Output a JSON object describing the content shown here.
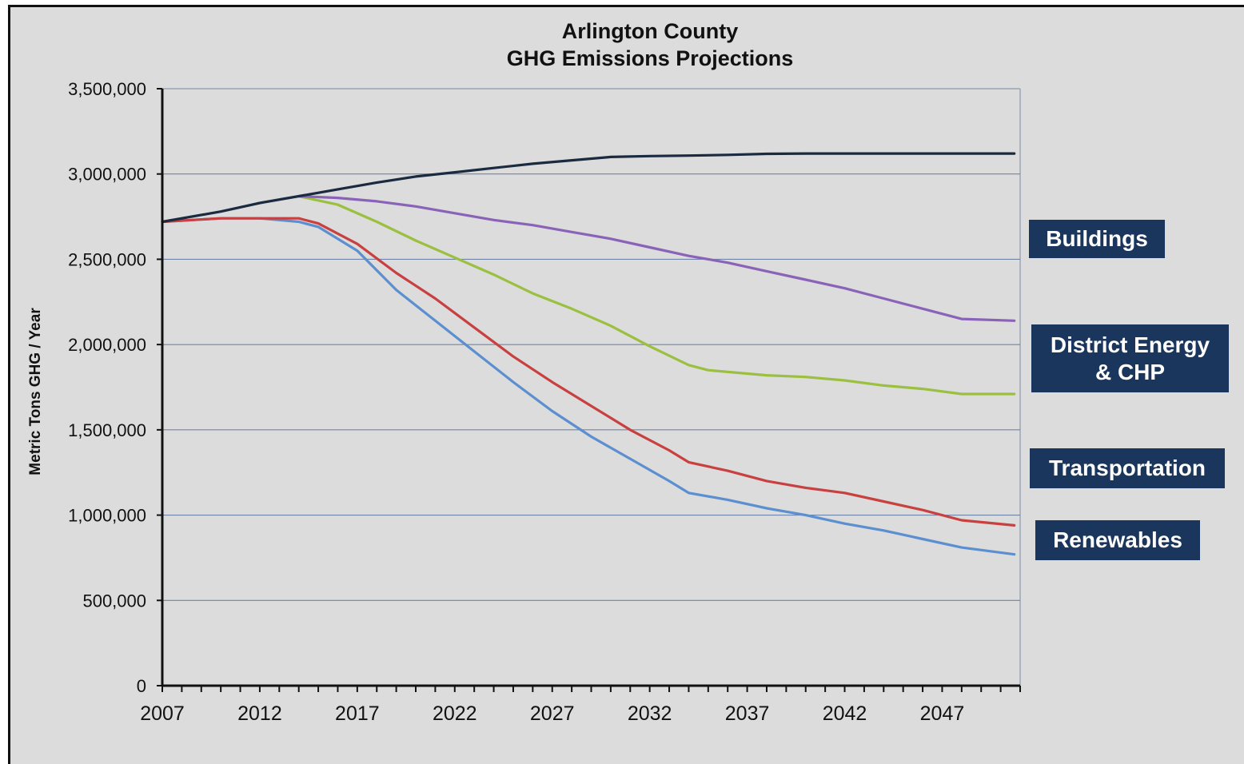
{
  "chart_data": {
    "type": "line",
    "title": [
      "Arlington County",
      "GHG Emissions Projections"
    ],
    "xlabel": "",
    "ylabel": "Metric Tons GHG / Year",
    "xlim": [
      2007,
      2051
    ],
    "ylim": [
      0,
      3500000
    ],
    "x_ticks": [
      2007,
      2012,
      2017,
      2022,
      2027,
      2032,
      2037,
      2042,
      2047
    ],
    "y_ticks": [
      0,
      500000,
      1000000,
      1500000,
      2000000,
      2500000,
      3000000,
      3500000
    ],
    "y_tick_labels": [
      "0",
      "500,000",
      "1,000,000",
      "1,500,000",
      "2,000,000",
      "2,500,000",
      "3,000,000",
      "3,500,000"
    ],
    "grid": "horizontal",
    "series": [
      {
        "color": "#1a2a40",
        "points": [
          [
            2007,
            2720000
          ],
          [
            2010,
            2780000
          ],
          [
            2012,
            2830000
          ],
          [
            2014,
            2870000
          ],
          [
            2016,
            2910000
          ],
          [
            2018,
            2950000
          ],
          [
            2020,
            2985000
          ],
          [
            2022,
            3010000
          ],
          [
            2024,
            3035000
          ],
          [
            2026,
            3060000
          ],
          [
            2028,
            3080000
          ],
          [
            2030,
            3100000
          ],
          [
            2032,
            3105000
          ],
          [
            2034,
            3108000
          ],
          [
            2036,
            3112000
          ],
          [
            2038,
            3118000
          ],
          [
            2040,
            3120000
          ],
          [
            2045,
            3120000
          ],
          [
            2050.7,
            3120000
          ]
        ]
      },
      {
        "name": "Buildings",
        "color": "#8a63b8",
        "points": [
          [
            2014,
            2870000
          ],
          [
            2016,
            2860000
          ],
          [
            2018,
            2840000
          ],
          [
            2020,
            2810000
          ],
          [
            2022,
            2770000
          ],
          [
            2024,
            2730000
          ],
          [
            2026,
            2700000
          ],
          [
            2028,
            2660000
          ],
          [
            2030,
            2620000
          ],
          [
            2032,
            2570000
          ],
          [
            2034,
            2520000
          ],
          [
            2036,
            2480000
          ],
          [
            2038,
            2430000
          ],
          [
            2040,
            2380000
          ],
          [
            2042,
            2330000
          ],
          [
            2044,
            2270000
          ],
          [
            2046,
            2210000
          ],
          [
            2048,
            2150000
          ],
          [
            2050.7,
            2140000
          ]
        ]
      },
      {
        "name": "District Energy & CHP",
        "color": "#9bc040",
        "points": [
          [
            2014,
            2870000
          ],
          [
            2016,
            2820000
          ],
          [
            2018,
            2720000
          ],
          [
            2020,
            2610000
          ],
          [
            2022,
            2510000
          ],
          [
            2024,
            2410000
          ],
          [
            2026,
            2300000
          ],
          [
            2028,
            2210000
          ],
          [
            2030,
            2110000
          ],
          [
            2032,
            1990000
          ],
          [
            2034,
            1880000
          ],
          [
            2035,
            1850000
          ],
          [
            2038,
            1820000
          ],
          [
            2040,
            1810000
          ],
          [
            2042,
            1790000
          ],
          [
            2044,
            1760000
          ],
          [
            2046,
            1740000
          ],
          [
            2048,
            1710000
          ],
          [
            2050.7,
            1710000
          ]
        ]
      },
      {
        "name": "Transportation",
        "color": "#c84040",
        "points": [
          [
            2007,
            2720000
          ],
          [
            2010,
            2740000
          ],
          [
            2012,
            2740000
          ],
          [
            2014,
            2740000
          ],
          [
            2015,
            2710000
          ],
          [
            2017,
            2590000
          ],
          [
            2019,
            2420000
          ],
          [
            2021,
            2270000
          ],
          [
            2023,
            2100000
          ],
          [
            2025,
            1930000
          ],
          [
            2027,
            1780000
          ],
          [
            2029,
            1640000
          ],
          [
            2031,
            1500000
          ],
          [
            2033,
            1380000
          ],
          [
            2034,
            1310000
          ],
          [
            2036,
            1260000
          ],
          [
            2038,
            1200000
          ],
          [
            2040,
            1160000
          ],
          [
            2042,
            1130000
          ],
          [
            2044,
            1080000
          ],
          [
            2046,
            1030000
          ],
          [
            2048,
            970000
          ],
          [
            2050.7,
            940000
          ]
        ]
      },
      {
        "name": "Renewables",
        "color": "#5b8fd0",
        "points": [
          [
            2007,
            2720000
          ],
          [
            2010,
            2740000
          ],
          [
            2012,
            2740000
          ],
          [
            2014,
            2720000
          ],
          [
            2015,
            2690000
          ],
          [
            2017,
            2550000
          ],
          [
            2019,
            2320000
          ],
          [
            2021,
            2140000
          ],
          [
            2023,
            1960000
          ],
          [
            2025,
            1780000
          ],
          [
            2027,
            1610000
          ],
          [
            2029,
            1460000
          ],
          [
            2031,
            1330000
          ],
          [
            2033,
            1200000
          ],
          [
            2034,
            1130000
          ],
          [
            2036,
            1090000
          ],
          [
            2038,
            1040000
          ],
          [
            2040,
            1000000
          ],
          [
            2042,
            950000
          ],
          [
            2044,
            910000
          ],
          [
            2046,
            860000
          ],
          [
            2048,
            810000
          ],
          [
            2050.7,
            770000
          ]
        ]
      }
    ],
    "legend": [
      {
        "label": "Buildings",
        "series": "Buildings"
      },
      {
        "label": "District Energy & CHP",
        "series": "District Energy & CHP"
      },
      {
        "label": "Transportation",
        "series": "Transportation"
      },
      {
        "label": "Renewables",
        "series": "Renewables"
      }
    ],
    "legend_placement": "right"
  }
}
